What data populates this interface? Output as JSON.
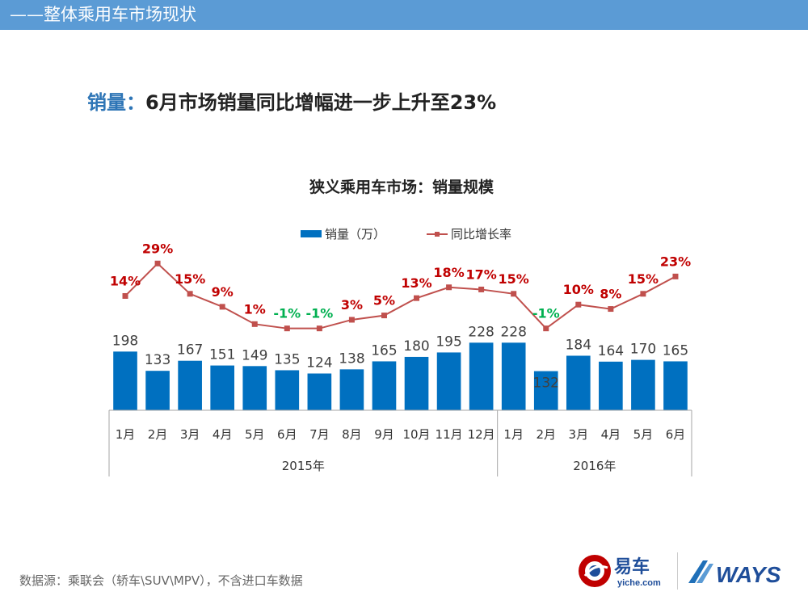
{
  "header": {
    "title": "——整体乘用车市场现状"
  },
  "headline": {
    "keyword": "销量",
    "separator": "：",
    "text": "6月市场销量同比增幅进一步上升至23%"
  },
  "chart_data": {
    "type": "bar+line",
    "title": "狭义乘用车市场：销量规模",
    "legend": {
      "position": "top-center",
      "items": [
        {
          "name": "销量（万）",
          "kind": "bar"
        },
        {
          "name": "同比增长率",
          "kind": "line"
        }
      ]
    },
    "categories": [
      "1月",
      "2月",
      "3月",
      "4月",
      "5月",
      "6月",
      "7月",
      "8月",
      "9月",
      "10月",
      "11月",
      "12月",
      "1月",
      "2月",
      "3月",
      "4月",
      "5月",
      "6月"
    ],
    "groups": [
      {
        "label": "2015年",
        "count": 12
      },
      {
        "label": "2016年",
        "count": 6
      }
    ],
    "series": [
      {
        "name": "销量（万）",
        "kind": "bar",
        "color": "#0070c0",
        "values": [
          198,
          133,
          167,
          151,
          149,
          135,
          124,
          138,
          165,
          180,
          195,
          228,
          228,
          132,
          184,
          164,
          170,
          165
        ]
      },
      {
        "name": "同比增长率",
        "kind": "line",
        "color": "#c0504d",
        "values": [
          14,
          29,
          15,
          9,
          1,
          -1,
          -1,
          3,
          5,
          13,
          18,
          17,
          15,
          -1,
          10,
          8,
          15,
          23
        ],
        "labels": [
          "14%",
          "29%",
          "15%",
          "9%",
          "1%",
          "-1%",
          "-1%",
          "3%",
          "5%",
          "13%",
          "18%",
          "17%",
          "15%",
          "-1%",
          "10%",
          "8%",
          "15%",
          "23%"
        ]
      }
    ],
    "colors": {
      "bar": "#0070c0",
      "line": "#c0504d",
      "positive_label": "#c00000",
      "negative_label": "#00b050",
      "bar_label": "#404040"
    }
  },
  "footer": {
    "source": "数据源：乘联会（轿车\\SUV\\MPV），不含进口车数据",
    "logo_yiche": {
      "name": "易车",
      "domain": "yiche.com"
    },
    "logo_ways": {
      "name": "WAYS"
    }
  }
}
